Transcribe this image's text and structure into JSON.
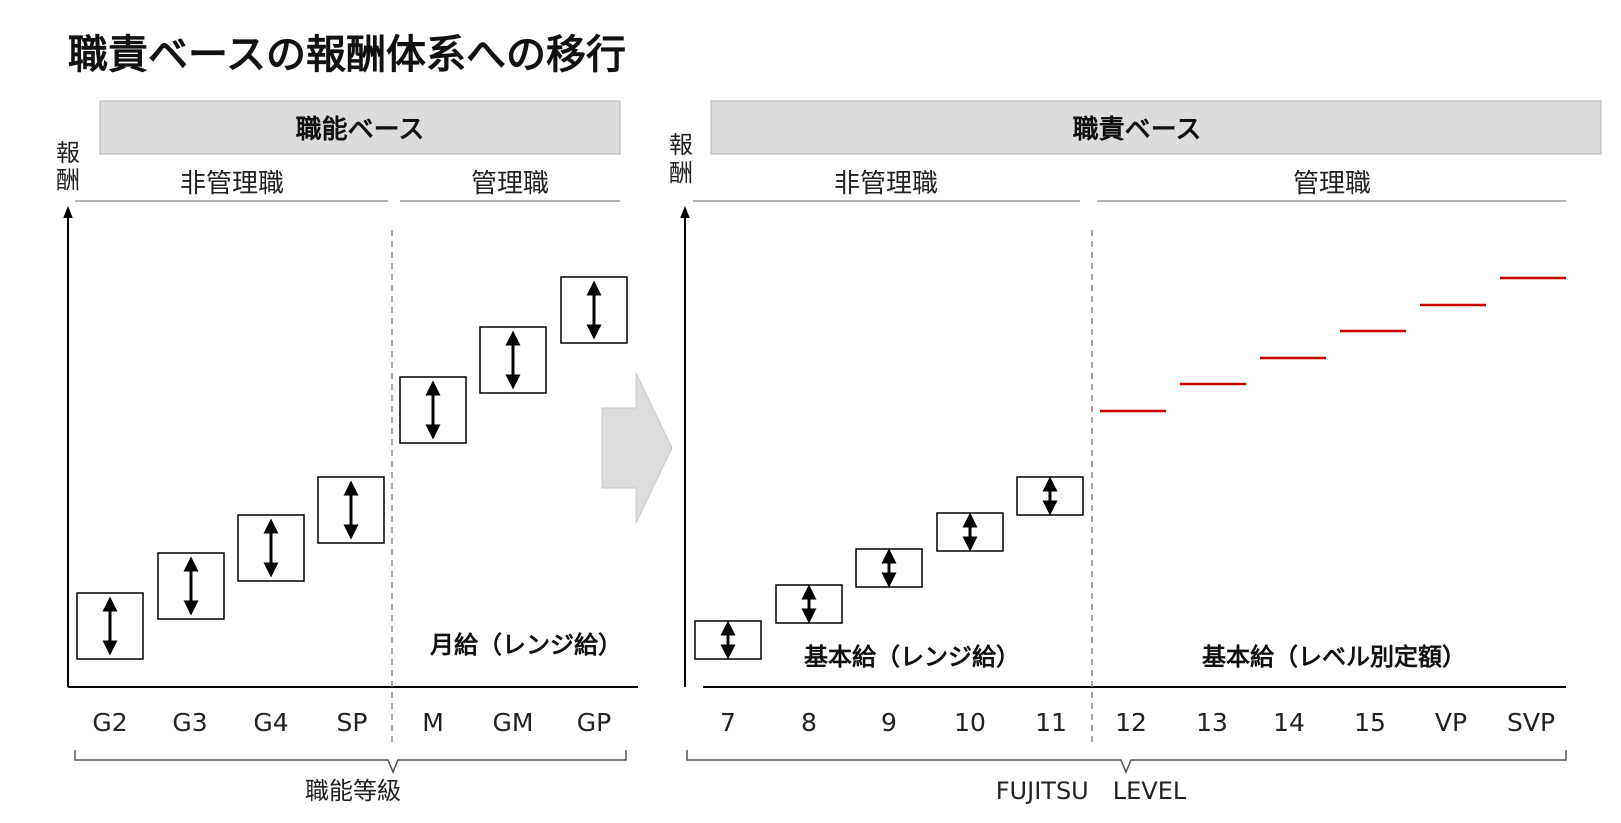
{
  "title": "職責ベースの報酬体系への移行",
  "colors": {
    "header_fill": "#dcdcdc",
    "header_stroke": "#b3b3b3",
    "fixed_line": "#cc0000",
    "arrow_fill": "#dddddd"
  },
  "left": {
    "header": "職能ベース",
    "y_label_top": "報",
    "y_label_bottom": "酬",
    "cat_nonmanager": "非管理職",
    "cat_manager": "管理職",
    "ticks": [
      "G2",
      "G3",
      "G4",
      "SP",
      "M",
      "GM",
      "GP"
    ],
    "annotation": "月給（レンジ給）",
    "axis_caption": "職能等級",
    "range_boxes": 7
  },
  "right": {
    "header": "職責ベース",
    "y_label_top": "報",
    "y_label_bottom": "酬",
    "cat_nonmanager": "非管理職",
    "cat_manager": "管理職",
    "ticks": [
      "7",
      "8",
      "9",
      "10",
      "11",
      "12",
      "13",
      "14",
      "15",
      "VP",
      "SVP"
    ],
    "annotation_range": "基本給（レンジ給）",
    "annotation_fixed": "基本給（レベル別定額）",
    "axis_caption": "FUJITSU　LEVEL",
    "range_boxes": 5,
    "fixed_levels": 6
  }
}
